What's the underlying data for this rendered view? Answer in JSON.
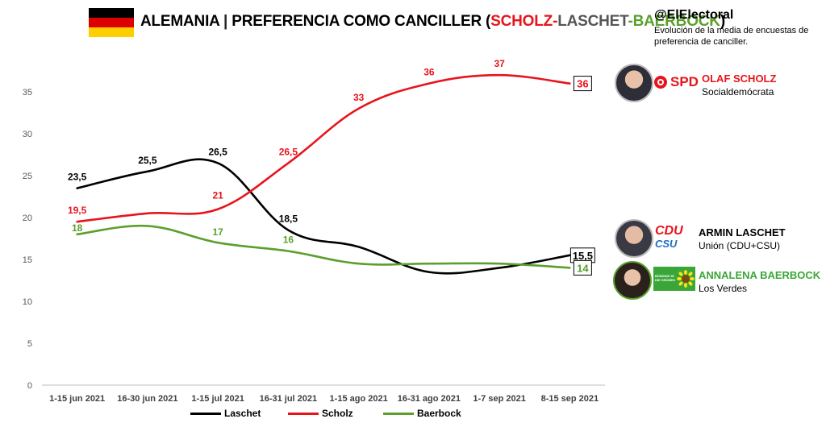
{
  "header": {
    "title_prefix": "ALEMANIA",
    "title_sep": " | ",
    "title_main": "PREFERENCIA COMO CANCILLER (",
    "title_scholz": "SCHOLZ",
    "title_dash1": "-",
    "title_laschet": "LASCHET",
    "title_dash2": "-",
    "title_baerbock": "BAERBOCK",
    "title_close": ")",
    "brand": "@ElElectoral",
    "subtitle": "Evolución de la media de encuestas de preferencia de canciller."
  },
  "colors": {
    "laschet": "#000000",
    "scholz": "#e8141c",
    "baerbock": "#5aa02c",
    "flag_black": "#000000",
    "flag_red": "#dd0000",
    "flag_gold": "#ffce00"
  },
  "candidates": {
    "scholz": {
      "name": "OLAF SCHOLZ",
      "party": "Socialdemócrata",
      "logo_text": "SPD",
      "icon": "spd-rose-icon"
    },
    "laschet": {
      "name": "ARMIN LASCHET",
      "party": "Unión (CDU+CSU)",
      "logo_text_1": "CDU",
      "logo_text_2": "CSU"
    },
    "baerbock": {
      "name": "ANNALENA BAERBOCK",
      "party": "Los Verdes",
      "logo_text": "BÜNDNIS 90 DIE GRÜNEN",
      "icon": "sunflower-icon"
    }
  },
  "chart_data": {
    "type": "line",
    "categories": [
      "1-15 jun 2021",
      "16-30 jun 2021",
      "1-15 jul 2021",
      "16-31 jul 2021",
      "1-15 ago 2021",
      "16-31 ago 2021",
      "1-7 sep 2021",
      "8-15 sep 2021"
    ],
    "ylim": [
      0,
      38
    ],
    "yticks": [
      0,
      5,
      10,
      15,
      20,
      25,
      30,
      35
    ],
    "grid": false,
    "legend_position": "bottom",
    "series": [
      {
        "name": "Laschet",
        "key": "laschet",
        "values": [
          23.5,
          25.5,
          26.5,
          18.5,
          16.5,
          13.5,
          14.0,
          15.5
        ],
        "labels": [
          "23,5",
          "25,5",
          "26,5",
          "18,5",
          "",
          "",
          "",
          "15,5"
        ]
      },
      {
        "name": "Scholz",
        "key": "scholz",
        "values": [
          19.5,
          20.5,
          21,
          26.5,
          33,
          36,
          37,
          36
        ],
        "labels": [
          "19,5",
          "",
          "21",
          "26,5",
          "33",
          "36",
          "37",
          "36"
        ]
      },
      {
        "name": "Baerbock",
        "key": "baerbock",
        "values": [
          18,
          19,
          17,
          16,
          14.5,
          14.5,
          14.5,
          14
        ],
        "labels": [
          "18",
          "",
          "17",
          "16",
          "",
          "",
          "",
          "14"
        ]
      }
    ]
  }
}
